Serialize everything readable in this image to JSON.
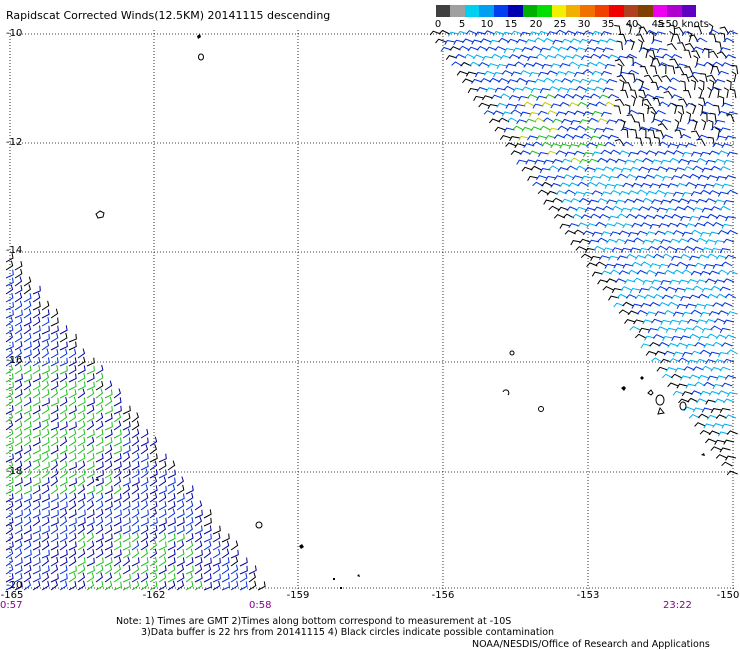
{
  "title": "Rapidscat Corrected Winds(12.5KM) 20141115 descending",
  "colorbar": {
    "colors": [
      "#404040",
      "#a0a0a0",
      "#00d0f0",
      "#00a0f0",
      "#0040f0",
      "#0000b0",
      "#00b000",
      "#00e000",
      "#f0f000",
      "#f0b000",
      "#f07000",
      "#f04000",
      "#f00000",
      "#b04020",
      "#804000",
      "#f000f0",
      "#b000d0",
      "#6000c0"
    ],
    "labels": [
      "0",
      "5",
      "10",
      "15",
      "20",
      "25",
      "30",
      "35",
      "40",
      "45",
      "≥50 knots"
    ]
  },
  "lat_labels": [
    "-10",
    "-12",
    "-14",
    "-16",
    "-18",
    "-20"
  ],
  "lon_labels": [
    "-165",
    "-162",
    "-159",
    "-156",
    "-153",
    "-150"
  ],
  "time_labels": [
    "0:57",
    "0:58",
    "23:22"
  ],
  "notes": [
    "Note: 1) Times are GMT 2)Times along bottom correspond to measurement at -10S",
    "3)Data buffer is 22 hrs from 20141115 4) Black circles indicate possible contamination"
  ],
  "credit": "NOAA/NESDIS/Office of Research and Applications",
  "wind_colors": {
    "blue": "#0030e0",
    "navy": "#0000a0",
    "cyan": "#00b0f0",
    "green": "#20c020",
    "black": "#000000",
    "yellow": "#c0d000"
  }
}
